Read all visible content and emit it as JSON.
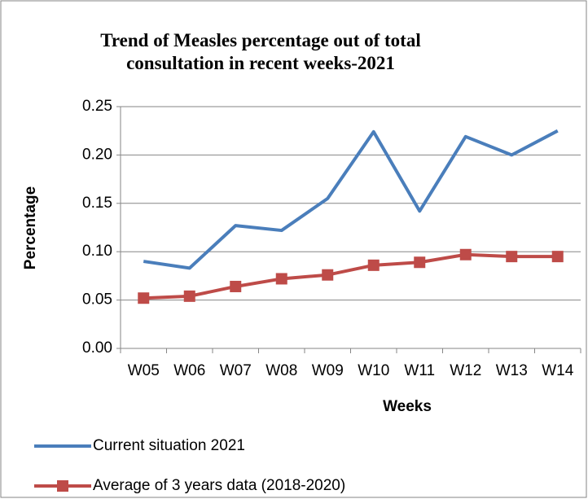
{
  "chart_data": {
    "type": "line",
    "title": "Trend of Measles percentage out of total consultation in recent weeks-2021",
    "x_label": "Weeks",
    "y_label": "Percentage",
    "categories": [
      "W05",
      "W06",
      "W07",
      "W08",
      "W09",
      "W10",
      "W11",
      "W12",
      "W13",
      "W14"
    ],
    "series": [
      {
        "name": "Current situation 2021",
        "color": "#4a7ebb",
        "marker": "none",
        "values": [
          0.09,
          0.083,
          0.127,
          0.122,
          0.155,
          0.224,
          0.142,
          0.219,
          0.2,
          0.225
        ]
      },
      {
        "name": "Average of 3 years data (2018-2020)",
        "color": "#be4b48",
        "marker": "square",
        "values": [
          0.052,
          0.054,
          0.064,
          0.072,
          0.076,
          0.086,
          0.089,
          0.097,
          0.095,
          0.095
        ]
      }
    ],
    "ylim": [
      0,
      0.25
    ],
    "yticks": [
      {
        "value": 0,
        "label": "0.00"
      },
      0.05,
      {
        "value": 0.1,
        "label": "0.10"
      },
      0.15,
      {
        "value": 0.2,
        "label": "0.20"
      },
      0.25
    ],
    "grid": true,
    "legend": "bottom"
  }
}
